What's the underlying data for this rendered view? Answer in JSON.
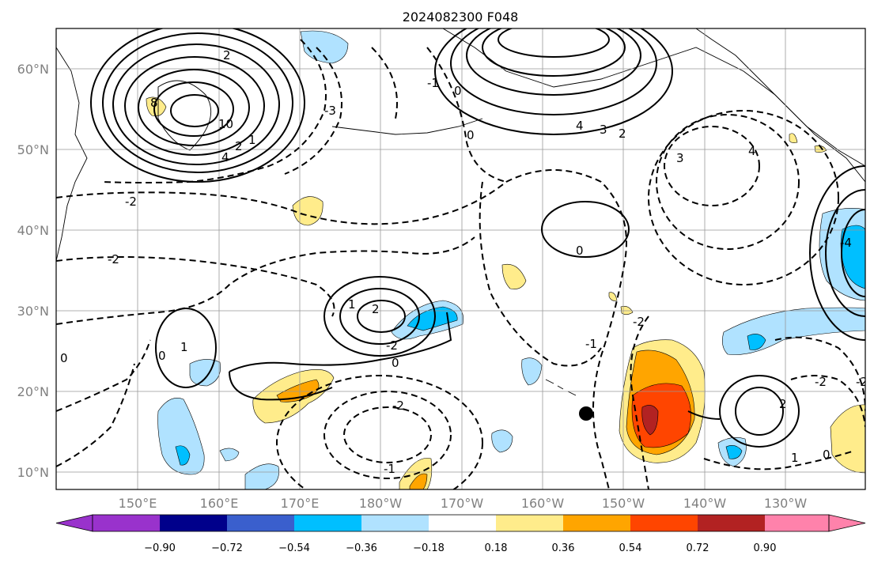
{
  "title": "2024082300 F048",
  "map": {
    "lat_labels": [
      "60°N",
      "50°N",
      "40°N",
      "30°N",
      "20°N",
      "10°N"
    ],
    "lon_labels": [
      "150°E",
      "160°E",
      "170°E",
      "180°W",
      "170°W",
      "160°W",
      "150°W",
      "140°W",
      "130°W"
    ],
    "contour_labels": [
      "2",
      "-2",
      "0",
      "4",
      "3",
      "2",
      "-1",
      "-2",
      "0",
      "-2",
      "1",
      "2",
      "0",
      "-2",
      "-2",
      "0",
      "-1",
      "-2",
      "2",
      "-1",
      "0",
      "1",
      "-2",
      "8",
      "10",
      "4",
      "2",
      "1",
      "0",
      "3",
      "4",
      "1",
      "-3",
      "-4",
      "0"
    ],
    "marker": "filled-circle"
  },
  "colorbar": {
    "ticks": [
      "−0.90",
      "−0.72",
      "−0.54",
      "−0.36",
      "−0.18",
      "0.18",
      "0.36",
      "0.54",
      "0.72",
      "0.90"
    ],
    "colors": [
      "#9932cc",
      "#00008b",
      "#3a5fcd",
      "#00bfff",
      "#b0e2ff",
      "#ffffff",
      "#ffec8b",
      "#ffa500",
      "#ff4500",
      "#b22222",
      "#ff82ab"
    ]
  }
}
